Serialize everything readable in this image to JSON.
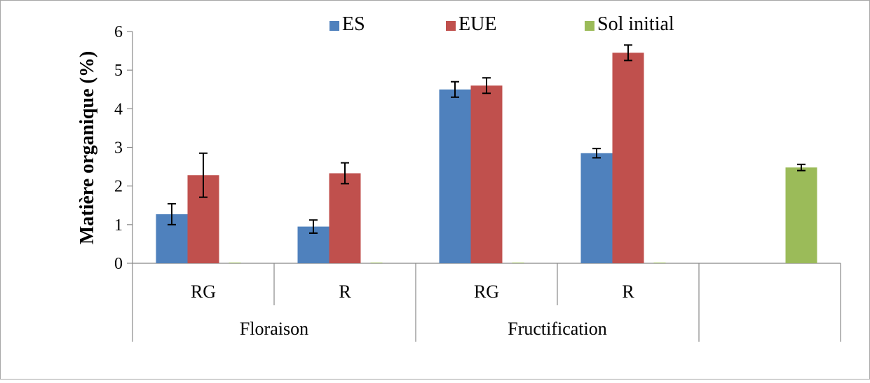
{
  "chart_data": {
    "type": "bar",
    "ylabel": "Matière organique (%)",
    "ylim": [
      0,
      6
    ],
    "yticks": [
      0,
      1,
      2,
      3,
      4,
      5,
      6
    ],
    "grid": false,
    "legend_position": "top",
    "groups": [
      {
        "label": "Floraison",
        "categories": [
          "RG",
          "R"
        ]
      },
      {
        "label": "Fructification",
        "categories": [
          "RG",
          "R"
        ]
      },
      {
        "label": "",
        "categories": [
          ""
        ]
      }
    ],
    "categories": [
      "RG",
      "R",
      "RG",
      "R",
      ""
    ],
    "series": [
      {
        "name": "ES",
        "color": "#4f81bd",
        "values": [
          1.27,
          0.95,
          4.5,
          2.85,
          null
        ],
        "errors": [
          0.27,
          0.17,
          0.2,
          0.12,
          null
        ]
      },
      {
        "name": "EUE",
        "color": "#c0504d",
        "values": [
          2.28,
          2.33,
          4.6,
          5.45,
          null
        ],
        "errors": [
          0.57,
          0.27,
          0.2,
          0.2,
          null
        ]
      },
      {
        "name": "Sol initial",
        "color": "#9bbb59",
        "values": [
          null,
          null,
          null,
          null,
          2.48
        ],
        "errors": [
          null,
          null,
          null,
          null,
          0.08
        ]
      }
    ]
  }
}
